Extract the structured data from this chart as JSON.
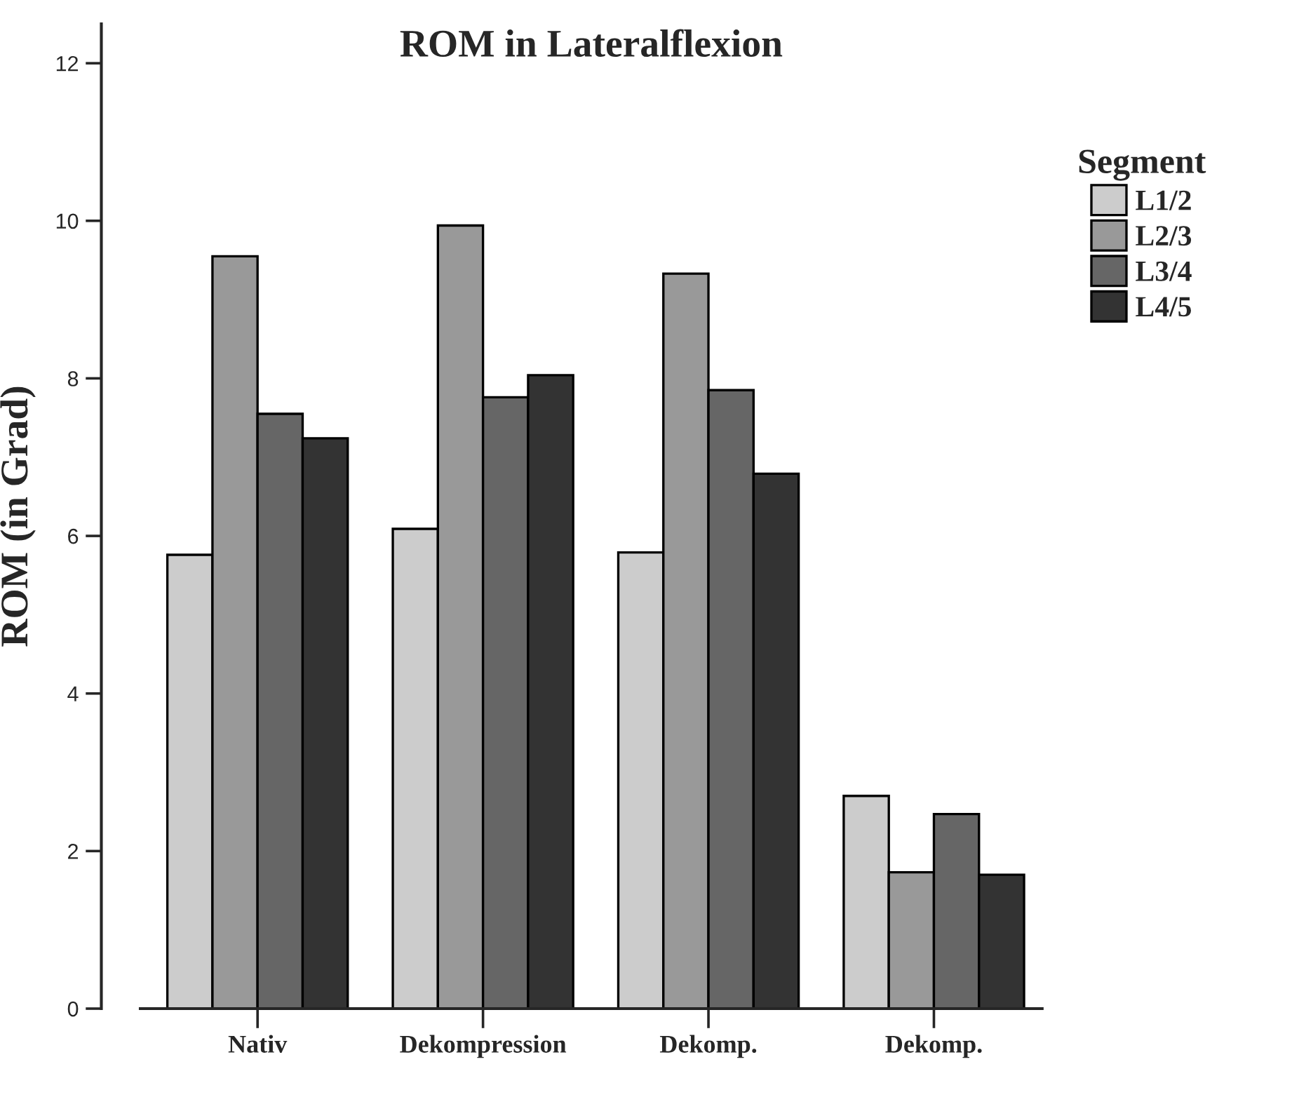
{
  "chart_data": {
    "type": "bar",
    "title": "ROM in Lateralflexion",
    "ylabel": "ROM (in Grad)",
    "legend_title": "Segment",
    "categories": [
      "Nativ",
      "Dekompression",
      "Dekomp.",
      "Dekomp."
    ],
    "series": [
      {
        "name": "L1/2",
        "color": "#cccccc",
        "values": [
          5.76,
          6.09,
          5.79,
          2.7
        ]
      },
      {
        "name": "L2/3",
        "color": "#999999",
        "values": [
          9.55,
          9.94,
          9.33,
          1.73
        ]
      },
      {
        "name": "L3/4",
        "color": "#666666",
        "values": [
          7.55,
          7.76,
          7.85,
          2.47
        ]
      },
      {
        "name": "L4/5",
        "color": "#333333",
        "values": [
          7.24,
          8.04,
          6.79,
          1.7
        ]
      }
    ],
    "ylim": [
      0,
      12.5
    ],
    "yticks": [
      0,
      2,
      4,
      6,
      8,
      10,
      12
    ],
    "grid": false,
    "legend": "right"
  }
}
